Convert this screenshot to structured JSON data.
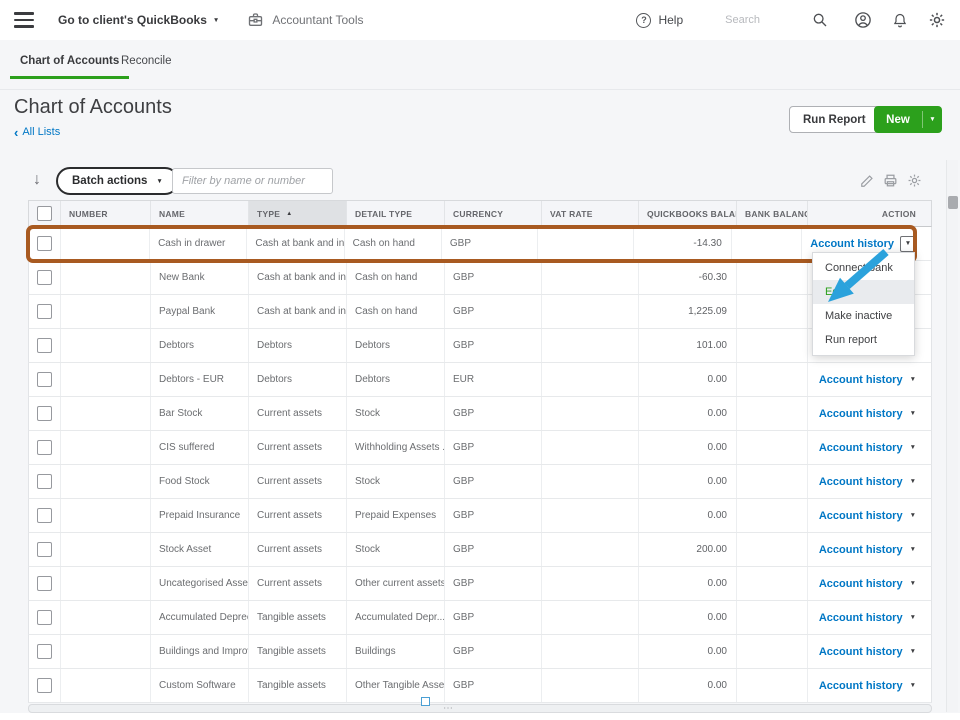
{
  "topbar": {
    "client_switcher_label": "Go to client's QuickBooks",
    "accountant_tools_label": "Accountant Tools",
    "help_label": "Help",
    "search_placeholder": "Search",
    "help_glyph": "?"
  },
  "tabs": {
    "chart_of_accounts": "Chart of Accounts",
    "reconcile": "Reconcile"
  },
  "page_header": {
    "title": "Chart of Accounts",
    "back_link_label": "All Lists",
    "run_report_label": "Run Report",
    "new_label": "New"
  },
  "toolbar": {
    "batch_actions_label": "Batch actions",
    "filter_placeholder": "Filter by name or number"
  },
  "table": {
    "columns": {
      "number": "NUMBER",
      "name": "NAME",
      "type": "TYPE",
      "detail_type": "DETAIL TYPE",
      "currency": "CURRENCY",
      "vat_rate": "VAT RATE",
      "quickbooks_balance": "QUICKBOOKS BALANCE",
      "bank_balance": "BANK BALANCE",
      "action": "ACTION"
    },
    "sorted_column": "TYPE",
    "sort_direction": "asc",
    "action_link_label": "Account history",
    "rows": [
      {
        "name": "Cash in drawer",
        "type": "Cash at bank and in...",
        "detail_type": "Cash on hand",
        "currency": "GBP",
        "vat_rate": "",
        "quickbooks_balance": "-14.30",
        "bank_balance": "",
        "highlighted": true,
        "menu_open": true
      },
      {
        "name": "New Bank",
        "type": "Cash at bank and in...",
        "detail_type": "Cash on hand",
        "currency": "GBP",
        "vat_rate": "",
        "quickbooks_balance": "-60.30",
        "bank_balance": ""
      },
      {
        "name": "Paypal Bank",
        "type": "Cash at bank and in...",
        "detail_type": "Cash on hand",
        "currency": "GBP",
        "vat_rate": "",
        "quickbooks_balance": "1,225.09",
        "bank_balance": ""
      },
      {
        "name": "Debtors",
        "type": "Debtors",
        "detail_type": "Debtors",
        "currency": "GBP",
        "vat_rate": "",
        "quickbooks_balance": "101.00",
        "bank_balance": ""
      },
      {
        "name": "Debtors - EUR",
        "type": "Debtors",
        "detail_type": "Debtors",
        "currency": "EUR",
        "vat_rate": "",
        "quickbooks_balance": "0.00",
        "bank_balance": ""
      },
      {
        "name": "Bar Stock",
        "type": "Current assets",
        "detail_type": "Stock",
        "currency": "GBP",
        "vat_rate": "",
        "quickbooks_balance": "0.00",
        "bank_balance": ""
      },
      {
        "name": "CIS suffered",
        "type": "Current assets",
        "detail_type": "Withholding Assets ...",
        "currency": "GBP",
        "vat_rate": "",
        "quickbooks_balance": "0.00",
        "bank_balance": ""
      },
      {
        "name": "Food Stock",
        "type": "Current assets",
        "detail_type": "Stock",
        "currency": "GBP",
        "vat_rate": "",
        "quickbooks_balance": "0.00",
        "bank_balance": ""
      },
      {
        "name": "Prepaid Insurance",
        "type": "Current assets",
        "detail_type": "Prepaid Expenses",
        "currency": "GBP",
        "vat_rate": "",
        "quickbooks_balance": "0.00",
        "bank_balance": ""
      },
      {
        "name": "Stock Asset",
        "type": "Current assets",
        "detail_type": "Stock",
        "currency": "GBP",
        "vat_rate": "",
        "quickbooks_balance": "200.00",
        "bank_balance": ""
      },
      {
        "name": "Uncategorised Asset",
        "type": "Current assets",
        "detail_type": "Other current assets",
        "currency": "GBP",
        "vat_rate": "",
        "quickbooks_balance": "0.00",
        "bank_balance": ""
      },
      {
        "name": "Accumulated Depreciat",
        "type": "Tangible assets",
        "detail_type": "Accumulated Depr...",
        "currency": "GBP",
        "vat_rate": "",
        "quickbooks_balance": "0.00",
        "bank_balance": ""
      },
      {
        "name": "Buildings and Improven",
        "type": "Tangible assets",
        "detail_type": "Buildings",
        "currency": "GBP",
        "vat_rate": "",
        "quickbooks_balance": "0.00",
        "bank_balance": ""
      },
      {
        "name": "Custom Software",
        "type": "Tangible assets",
        "detail_type": "Other Tangible Assets",
        "currency": "GBP",
        "vat_rate": "",
        "quickbooks_balance": "0.00",
        "bank_balance": ""
      }
    ]
  },
  "row_menu": {
    "items": [
      "Connect bank",
      "Edit",
      "Make inactive",
      "Run report"
    ],
    "highlighted_item": "Edit"
  },
  "colors": {
    "brand_green": "#2ca01c",
    "link_blue": "#0077c5",
    "highlight_border": "#a85a21",
    "annotation_arrow": "#2ba2dc"
  }
}
